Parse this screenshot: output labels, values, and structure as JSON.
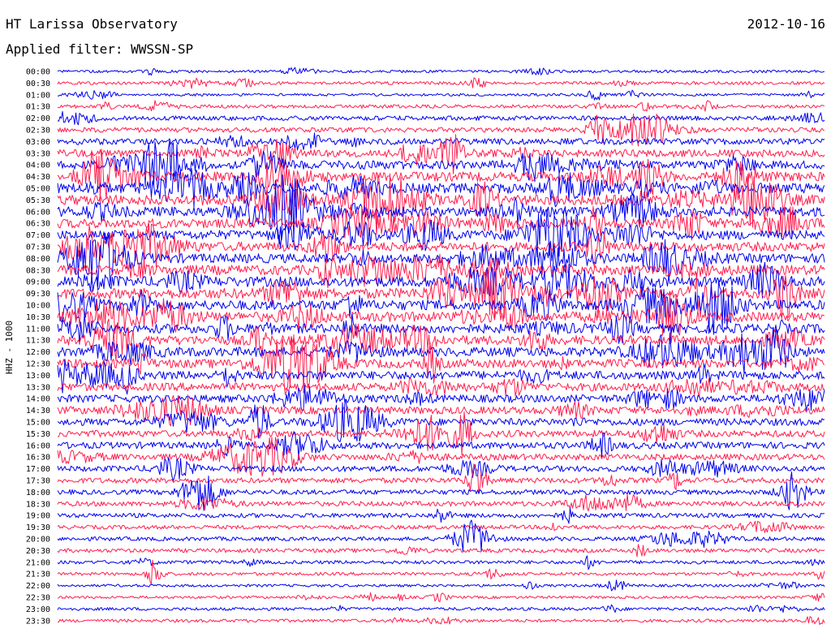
{
  "header": {
    "station_title": "HT Larissa Observatory",
    "date": "2012-10-16",
    "filter_text": "Applied filter: WWSSN-SP"
  },
  "channel_label": "HHZ - 1000",
  "colors": {
    "trace_a": "#0000ee",
    "trace_b": "#ff1f4f",
    "background": "#ffffff",
    "text": "#000000"
  },
  "chart_data": {
    "type": "line",
    "title": "HT Larissa Observatory",
    "date": "2012-10-16",
    "filter": "WWSSN-SP",
    "ylabel": "HHZ - 1000",
    "xlabel": "",
    "grid": false,
    "row_interval_minutes": 30,
    "rows": [
      {
        "label": "00:00",
        "activity": 0.15
      },
      {
        "label": "00:30",
        "activity": 0.2
      },
      {
        "label": "01:00",
        "activity": 0.15
      },
      {
        "label": "01:30",
        "activity": 0.25
      },
      {
        "label": "02:00",
        "activity": 0.35
      },
      {
        "label": "02:30",
        "activity": 0.4
      },
      {
        "label": "03:00",
        "activity": 0.55
      },
      {
        "label": "03:30",
        "activity": 0.7
      },
      {
        "label": "04:00",
        "activity": 0.8
      },
      {
        "label": "04:30",
        "activity": 0.9
      },
      {
        "label": "05:00",
        "activity": 1.0
      },
      {
        "label": "05:30",
        "activity": 1.0
      },
      {
        "label": "06:00",
        "activity": 0.95
      },
      {
        "label": "06:30",
        "activity": 0.9
      },
      {
        "label": "07:00",
        "activity": 0.9
      },
      {
        "label": "07:30",
        "activity": 0.9
      },
      {
        "label": "08:00",
        "activity": 0.9
      },
      {
        "label": "08:30",
        "activity": 0.95
      },
      {
        "label": "09:00",
        "activity": 1.0
      },
      {
        "label": "09:30",
        "activity": 1.0
      },
      {
        "label": "10:00",
        "activity": 0.95
      },
      {
        "label": "10:30",
        "activity": 0.95
      },
      {
        "label": "11:00",
        "activity": 0.9
      },
      {
        "label": "11:30",
        "activity": 0.9
      },
      {
        "label": "12:00",
        "activity": 0.9
      },
      {
        "label": "12:30",
        "activity": 0.85
      },
      {
        "label": "13:00",
        "activity": 0.8
      },
      {
        "label": "13:30",
        "activity": 0.75
      },
      {
        "label": "14:00",
        "activity": 0.7
      },
      {
        "label": "14:30",
        "activity": 0.7
      },
      {
        "label": "15:00",
        "activity": 0.65
      },
      {
        "label": "15:30",
        "activity": 0.6
      },
      {
        "label": "16:00",
        "activity": 0.6
      },
      {
        "label": "16:30",
        "activity": 0.55
      },
      {
        "label": "17:00",
        "activity": 0.5
      },
      {
        "label": "17:30",
        "activity": 0.45
      },
      {
        "label": "18:00",
        "activity": 0.4
      },
      {
        "label": "18:30",
        "activity": 0.4
      },
      {
        "label": "19:00",
        "activity": 0.35
      },
      {
        "label": "19:30",
        "activity": 0.3
      },
      {
        "label": "20:00",
        "activity": 0.3
      },
      {
        "label": "20:30",
        "activity": 0.3
      },
      {
        "label": "21:00",
        "activity": 0.25
      },
      {
        "label": "21:30",
        "activity": 0.2
      },
      {
        "label": "22:00",
        "activity": 0.15
      },
      {
        "label": "22:30",
        "activity": 0.15
      },
      {
        "label": "23:00",
        "activity": 0.2
      },
      {
        "label": "23:30",
        "activity": 0.2
      }
    ]
  }
}
